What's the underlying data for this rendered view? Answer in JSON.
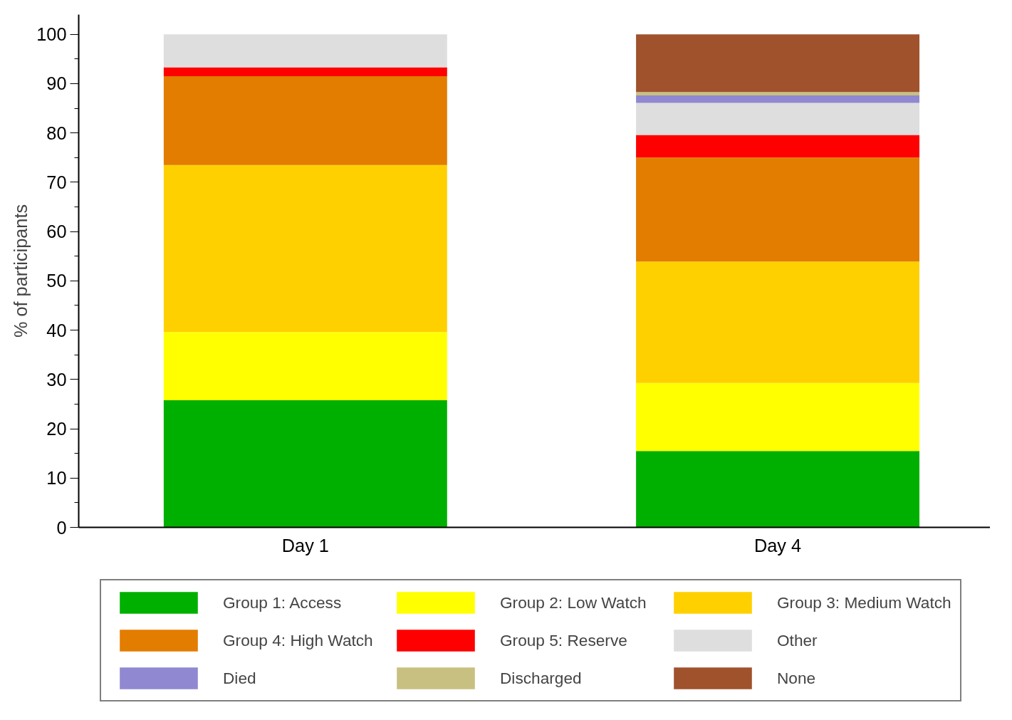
{
  "chart_data": {
    "type": "bar",
    "stacked": true,
    "ylabel": "% of participants",
    "categories": [
      "Day 1",
      "Day 4"
    ],
    "series": [
      {
        "name": "Group 1: Access",
        "color": "#00b000",
        "values": [
          25.8,
          15.5
        ]
      },
      {
        "name": "Group 2: Low Watch",
        "color": "#ffff00",
        "values": [
          13.8,
          13.8
        ]
      },
      {
        "name": "Group 3: Medium Watch",
        "color": "#ffd000",
        "values": [
          33.9,
          24.6
        ]
      },
      {
        "name": "Group 4: High Watch",
        "color": "#e27d00",
        "values": [
          18.0,
          21.1
        ]
      },
      {
        "name": "Group 5: Reserve",
        "color": "#ff0000",
        "values": [
          1.8,
          4.6
        ]
      },
      {
        "name": "Other",
        "color": "#dedede",
        "values": [
          6.7,
          6.5
        ]
      },
      {
        "name": "Died",
        "color": "#9088d0",
        "values": [
          null,
          1.5
        ]
      },
      {
        "name": "Discharged",
        "color": "#c8c080",
        "values": [
          null,
          0.7
        ]
      },
      {
        "name": "None",
        "color": "#a0522d",
        "values": [
          null,
          11.7
        ]
      }
    ],
    "ylim": [
      0,
      104
    ],
    "yticks": [
      0,
      10,
      20,
      30,
      40,
      50,
      60,
      70,
      80,
      90,
      100
    ],
    "grid": false,
    "legend": "bottom"
  }
}
